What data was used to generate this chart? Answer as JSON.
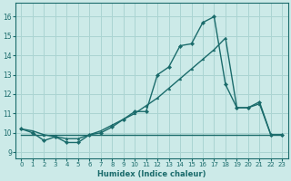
{
  "xlabel": "Humidex (Indice chaleur)",
  "background_color": "#cceae8",
  "grid_color": "#aad4d2",
  "line_color": "#1a6b6b",
  "x_ticks": [
    0,
    1,
    2,
    3,
    4,
    5,
    6,
    7,
    8,
    9,
    10,
    11,
    12,
    13,
    14,
    15,
    16,
    17,
    18,
    19,
    20,
    21,
    22,
    23
  ],
  "y_ticks": [
    9,
    10,
    11,
    12,
    13,
    14,
    15,
    16
  ],
  "ylim": [
    8.7,
    16.7
  ],
  "xlim": [
    -0.5,
    23.5
  ],
  "series1_y": [
    10.2,
    10.0,
    9.6,
    9.8,
    9.5,
    9.5,
    9.9,
    10.0,
    10.3,
    10.7,
    11.1,
    11.1,
    13.0,
    13.4,
    14.5,
    14.6,
    15.7,
    16.0,
    12.5,
    11.3,
    11.3,
    11.6,
    9.9,
    9.9
  ],
  "series2_y": [
    10.2,
    10.1,
    9.9,
    9.8,
    9.7,
    9.7,
    9.9,
    10.1,
    10.4,
    10.7,
    11.0,
    11.4,
    11.8,
    12.3,
    12.8,
    13.3,
    13.8,
    14.3,
    14.9,
    11.3,
    11.3,
    11.5,
    9.9,
    9.9
  ],
  "series3_y": [
    9.9,
    9.9,
    9.9,
    9.9,
    9.9,
    9.9,
    9.9,
    9.9,
    9.9,
    9.9,
    9.9,
    9.9,
    9.9,
    9.9,
    9.9,
    9.9,
    9.9,
    9.9,
    9.9,
    9.9,
    9.9,
    9.9,
    9.9,
    9.9
  ]
}
